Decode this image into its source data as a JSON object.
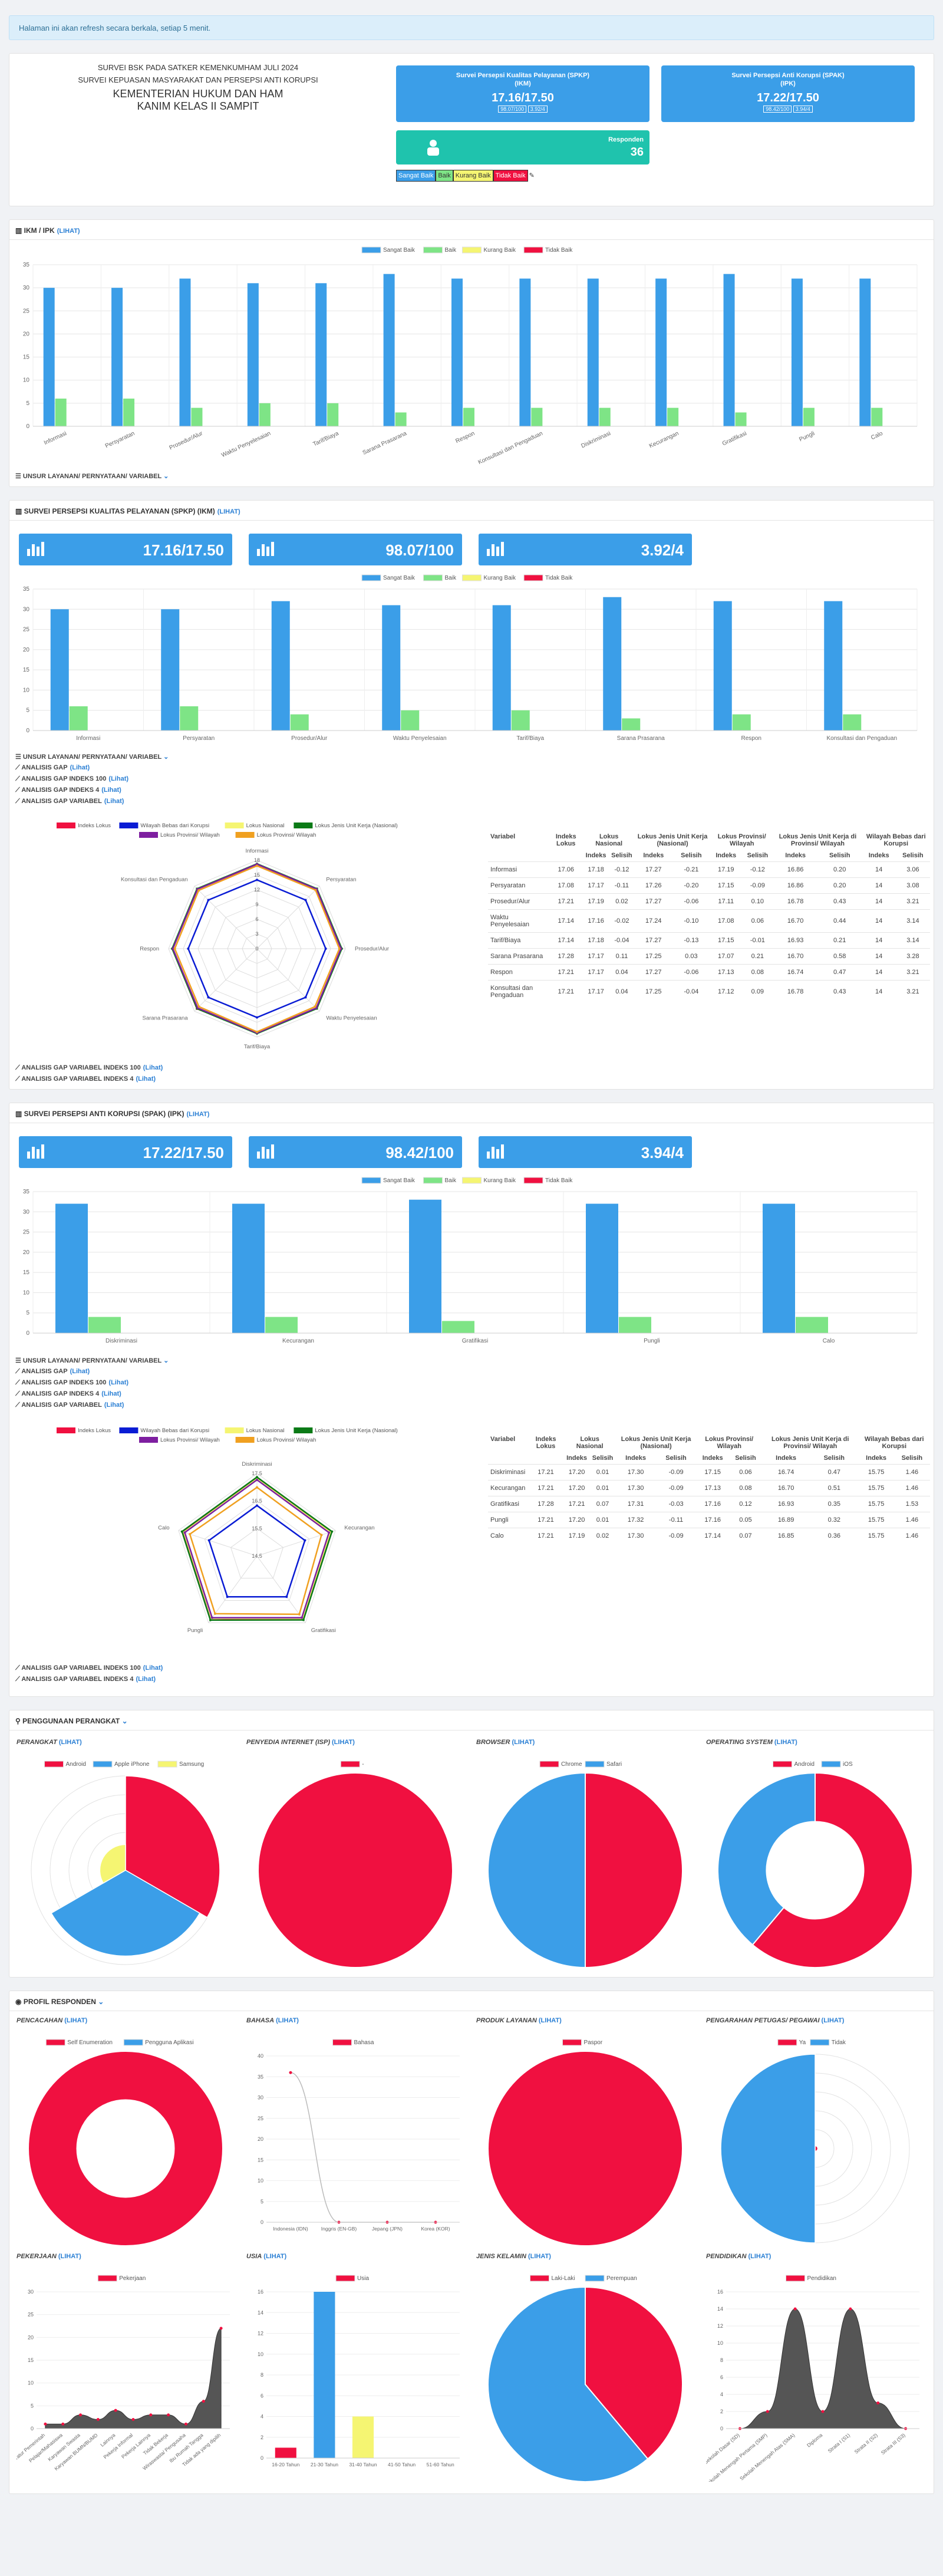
{
  "notice": "Halaman ini akan refresh secara berkala, setiap 5 menit.",
  "header": {
    "line1": "SURVEI BSK PADA SATKER KEMENKUMHAM JULI 2024",
    "line2": "SURVEI KEPUASAN MASYARAKAT DAN PERSEPSI ANTI KORUPSI",
    "line3": "KEMENTERIAN HUKUM DAN HAM",
    "line4": "KANIM KELAS II SAMPIT"
  },
  "spkp": {
    "title1": "Survei Persepsi Kualitas Pelayanan (SPKP)",
    "title2": "(IKM)",
    "value": "17.16/17.50",
    "sub1": "98.07/100",
    "sub2": "3.92/4"
  },
  "spak": {
    "title1": "Survei Persepsi Anti Korupsi (SPAK)",
    "title2": "(IPK)",
    "value": "17.22/17.50",
    "sub1": "98.42/100",
    "sub2": "3.94/4"
  },
  "responden": {
    "label": "Responden",
    "value": "36"
  },
  "legend_predikat": [
    "Sangat Baik",
    "Baik",
    "Kurang Baik",
    "Tidak Baik"
  ],
  "colors": {
    "blue": "#3b9ee8",
    "green": "#7ee486",
    "yellow": "#f5f572",
    "red": "#f01040",
    "teal": "#1fc3ad",
    "navy": "#0a1cd4",
    "darkgreen": "#0b7a16",
    "purple": "#7e1fa0",
    "orange": "#f0a020",
    "grey": "#555555"
  },
  "ikm_ipk": {
    "title": "IKM / IPK",
    "link": "(Lihat)",
    "unsur": "UNSUR LAYANAN/ PERNYATAAN/ VARIABEL"
  },
  "spkp_section": {
    "title": "SURVEI PERSEPSI KUALITAS PELAYANAN (SPKP) (IKM)",
    "link": "(Lihat)",
    "score1": "17.16/17.50",
    "score2": "98.07/100",
    "score3": "3.92/4",
    "links": [
      "UNSUR LAYANAN/ PERNYATAAN/ VARIABEL",
      "ANALISIS GAP",
      "ANALISIS GAP INDEKS 100",
      "ANALISIS GAP INDEKS 4",
      "ANALISIS GAP VARIABEL"
    ],
    "bottom_links": [
      "ANALISIS GAP VARIABEL INDEKS 100",
      "ANALISIS GAP VARIABEL INDEKS 4"
    ]
  },
  "spak_section": {
    "title": "SURVEI PERSEPSI ANTI KORUPSI (SPAK) (IPK)",
    "link": "(Lihat)",
    "score1": "17.22/17.50",
    "score2": "98.42/100",
    "score3": "3.94/4",
    "links": [
      "UNSUR LAYANAN/ PERNYATAAN/ VARIABEL",
      "ANALISIS GAP",
      "ANALISIS GAP INDEKS 100",
      "ANALISIS GAP INDEKS 4",
      "ANALISIS GAP VARIABEL"
    ],
    "bottom_links": [
      "ANALISIS GAP VARIABEL INDEKS 100",
      "ANALISIS GAP VARIABEL INDEKS 4"
    ]
  },
  "radar_legend": [
    "Indeks Lokus",
    "Wilayah Bebas dari Korupsi",
    "Lokus Nasional",
    "Lokus Jenis Unit Kerja (Nasional)",
    "Lokus Provinsi/ Wilayah",
    "Lokus Provinsi/ Wilayah"
  ],
  "gap_headers": {
    "variabel": "Variabel",
    "indeks_lokus": "Indeks Lokus",
    "nasional": "Lokus Nasional",
    "jenis_unit": "Lokus Jenis Unit Kerja (Nasional)",
    "provinsi": "Lokus Provinsi/ Wilayah",
    "jenis_prov": "Lokus Jenis Unit Kerja di Provinsi/ Wilayah",
    "wbk": "Wilayah Bebas dari Korupsi",
    "indeks": "Indeks",
    "selisih": "Selisih"
  },
  "gap_spkp": [
    [
      "Informasi",
      "17.06",
      "17.18",
      "-0.12",
      "17.27",
      "-0.21",
      "17.19",
      "-0.12",
      "16.86",
      "0.20",
      "14",
      "3.06"
    ],
    [
      "Persyaratan",
      "17.08",
      "17.17",
      "-0.11",
      "17.26",
      "-0.20",
      "17.15",
      "-0.09",
      "16.86",
      "0.20",
      "14",
      "3.08"
    ],
    [
      "Prosedur/Alur",
      "17.21",
      "17.19",
      "0.02",
      "17.27",
      "-0.06",
      "17.11",
      "0.10",
      "16.78",
      "0.43",
      "14",
      "3.21"
    ],
    [
      "Waktu Penyelesaian",
      "17.14",
      "17.16",
      "-0.02",
      "17.24",
      "-0.10",
      "17.08",
      "0.06",
      "16.70",
      "0.44",
      "14",
      "3.14"
    ],
    [
      "Tarif/Biaya",
      "17.14",
      "17.18",
      "-0.04",
      "17.27",
      "-0.13",
      "17.15",
      "-0.01",
      "16.93",
      "0.21",
      "14",
      "3.14"
    ],
    [
      "Sarana Prasarana",
      "17.28",
      "17.17",
      "0.11",
      "17.25",
      "0.03",
      "17.07",
      "0.21",
      "16.70",
      "0.58",
      "14",
      "3.28"
    ],
    [
      "Respon",
      "17.21",
      "17.17",
      "0.04",
      "17.27",
      "-0.06",
      "17.13",
      "0.08",
      "16.74",
      "0.47",
      "14",
      "3.21"
    ],
    [
      "Konsultasi dan Pengaduan",
      "17.21",
      "17.17",
      "0.04",
      "17.25",
      "-0.04",
      "17.12",
      "0.09",
      "16.78",
      "0.43",
      "14",
      "3.21"
    ]
  ],
  "gap_spak": [
    [
      "Diskriminasi",
      "17.21",
      "17.20",
      "0.01",
      "17.30",
      "-0.09",
      "17.15",
      "0.06",
      "16.74",
      "0.47",
      "15.75",
      "1.46"
    ],
    [
      "Kecurangan",
      "17.21",
      "17.20",
      "0.01",
      "17.30",
      "-0.09",
      "17.13",
      "0.08",
      "16.70",
      "0.51",
      "15.75",
      "1.46"
    ],
    [
      "Gratifikasi",
      "17.28",
      "17.21",
      "0.07",
      "17.31",
      "-0.03",
      "17.16",
      "0.12",
      "16.93",
      "0.35",
      "15.75",
      "1.53"
    ],
    [
      "Pungli",
      "17.21",
      "17.20",
      "0.01",
      "17.32",
      "-0.11",
      "17.16",
      "0.05",
      "16.89",
      "0.32",
      "15.75",
      "1.46"
    ],
    [
      "Calo",
      "17.21",
      "17.19",
      "0.02",
      "17.30",
      "-0.09",
      "17.14",
      "0.07",
      "16.85",
      "0.36",
      "15.75",
      "1.46"
    ]
  ],
  "perangkat_section": {
    "title": "PENGGUNAAN PERANGKAT",
    "link": "(Lihat)"
  },
  "profil_section": {
    "title": "PROFIL RESPONDEN",
    "link": "(Lihat)"
  },
  "sub_links": "(Lihat)",
  "chart_data": [
    {
      "id": "ikm_ipk",
      "type": "bar",
      "categories": [
        "Informasi",
        "Persyaratan",
        "Prosedur/Alur",
        "Waktu Penyelesaian",
        "Tarif/Biaya",
        "Sarana Prasarana",
        "Respon",
        "Konsultasi dan Pengaduan",
        "Diskriminasi",
        "Kecurangan",
        "Gratifikasi",
        "Pungli",
        "Calo"
      ],
      "series": [
        {
          "name": "Sangat Baik",
          "values": [
            30,
            30,
            32,
            31,
            31,
            33,
            32,
            32,
            32,
            32,
            33,
            32,
            32
          ]
        },
        {
          "name": "Baik",
          "values": [
            6,
            6,
            4,
            5,
            5,
            3,
            4,
            4,
            4,
            4,
            3,
            4,
            4
          ]
        },
        {
          "name": "Kurang Baik",
          "values": [
            0,
            0,
            0,
            0,
            0,
            0,
            0,
            0,
            0,
            0,
            0,
            0,
            0
          ]
        },
        {
          "name": "Tidak Baik",
          "values": [
            0,
            0,
            0,
            0,
            0,
            0,
            0,
            0,
            0,
            0,
            0,
            0,
            0
          ]
        }
      ],
      "ylim": [
        0,
        35
      ],
      "yticks": [
        0,
        5,
        10,
        15,
        20,
        25,
        30,
        35
      ]
    },
    {
      "id": "spkp_bar",
      "type": "bar",
      "categories": [
        "Informasi",
        "Persyaratan",
        "Prosedur/Alur",
        "Waktu Penyelesaian",
        "Tarif/Biaya",
        "Sarana Prasarana",
        "Respon",
        "Konsultasi dan Pengaduan"
      ],
      "series": [
        {
          "name": "Sangat Baik",
          "values": [
            30,
            30,
            32,
            31,
            31,
            33,
            32,
            32
          ]
        },
        {
          "name": "Baik",
          "values": [
            6,
            6,
            4,
            5,
            5,
            3,
            4,
            4
          ]
        },
        {
          "name": "Kurang Baik",
          "values": [
            0,
            0,
            0,
            0,
            0,
            0,
            0,
            0
          ]
        },
        {
          "name": "Tidak Baik",
          "values": [
            0,
            0,
            0,
            0,
            0,
            0,
            0,
            0
          ]
        }
      ],
      "ylim": [
        0,
        35
      ],
      "yticks": [
        0,
        5,
        10,
        15,
        20,
        25,
        30,
        35
      ]
    },
    {
      "id": "spak_bar",
      "type": "bar",
      "categories": [
        "Diskriminasi",
        "Kecurangan",
        "Gratifikasi",
        "Pungli",
        "Calo"
      ],
      "series": [
        {
          "name": "Sangat Baik",
          "values": [
            32,
            32,
            33,
            32,
            32
          ]
        },
        {
          "name": "Baik",
          "values": [
            4,
            4,
            3,
            4,
            4
          ]
        },
        {
          "name": "Kurang Baik",
          "values": [
            0,
            0,
            0,
            0,
            0
          ]
        },
        {
          "name": "Tidak Baik",
          "values": [
            0,
            0,
            0,
            0,
            0
          ]
        }
      ],
      "ylim": [
        0,
        35
      ],
      "yticks": [
        0,
        5,
        10,
        15,
        20,
        25,
        30,
        35
      ]
    },
    {
      "id": "spkp_radar",
      "type": "radar",
      "categories": [
        "Informasi",
        "Persyaratan",
        "Prosedur/Alur",
        "Waktu Penyelesaian",
        "Tarif/Biaya",
        "Sarana Prasarana",
        "Respon",
        "Konsultasi dan Pengaduan"
      ],
      "rlim": [
        0,
        18
      ],
      "ticks": [
        "18",
        "15",
        "12",
        "9",
        "6",
        "3",
        "0"
      ],
      "series": [
        {
          "name": "Indeks Lokus",
          "values": [
            17.06,
            17.08,
            17.21,
            17.14,
            17.14,
            17.28,
            17.21,
            17.21
          ]
        },
        {
          "name": "Wilayah Bebas dari Korupsi",
          "values": [
            14,
            14,
            14,
            14,
            14,
            14,
            14,
            14
          ]
        },
        {
          "name": "Lokus Nasional",
          "values": [
            17.18,
            17.17,
            17.19,
            17.16,
            17.18,
            17.17,
            17.17,
            17.17
          ]
        },
        {
          "name": "Lokus Jenis Unit Kerja (Nasional)",
          "values": [
            17.27,
            17.26,
            17.27,
            17.24,
            17.27,
            17.25,
            17.27,
            17.25
          ]
        },
        {
          "name": "Lokus Provinsi/ Wilayah",
          "values": [
            17.19,
            17.15,
            17.11,
            17.08,
            17.15,
            17.07,
            17.13,
            17.12
          ]
        },
        {
          "name": "Lokus Provinsi/ Wilayah",
          "values": [
            16.86,
            16.86,
            16.78,
            16.7,
            16.93,
            16.7,
            16.74,
            16.78
          ]
        }
      ]
    },
    {
      "id": "spak_radar",
      "type": "radar",
      "categories": [
        "Diskriminasi",
        "Kecurangan",
        "Gratifikasi",
        "Pungli",
        "Calo"
      ],
      "rlim": [
        13,
        17.5
      ],
      "ticks": [
        "17.5",
        "16.5",
        "15.5",
        "14.5"
      ],
      "series": [
        {
          "name": "Indeks Lokus",
          "values": [
            17.21,
            17.21,
            17.28,
            17.21,
            17.21
          ]
        },
        {
          "name": "Wilayah Bebas dari Korupsi",
          "values": [
            15.75,
            15.75,
            15.75,
            15.75,
            15.75
          ]
        },
        {
          "name": "Lokus Nasional",
          "values": [
            17.2,
            17.2,
            17.21,
            17.2,
            17.19
          ]
        },
        {
          "name": "Lokus Jenis Unit Kerja (Nasional)",
          "values": [
            17.3,
            17.3,
            17.31,
            17.32,
            17.3
          ]
        },
        {
          "name": "Lokus Provinsi/ Wilayah",
          "values": [
            17.15,
            17.13,
            17.16,
            17.16,
            17.14
          ]
        },
        {
          "name": "Lokus Provinsi/ Wilayah",
          "values": [
            16.74,
            16.7,
            16.93,
            16.89,
            16.85
          ]
        }
      ]
    },
    {
      "id": "perangkat",
      "title": "PERANGKAT",
      "type": "polarArea",
      "labels": [
        "Android",
        "Apple iPhone",
        "Samsung"
      ],
      "values": [
        22,
        20,
        6
      ]
    },
    {
      "id": "isp",
      "title": "PENYEDIA INTERNET (ISP)",
      "type": "pie",
      "labels": [
        "-"
      ],
      "values": [
        36
      ]
    },
    {
      "id": "browser",
      "title": "BROWSER",
      "type": "pie",
      "labels": [
        "Chrome",
        "Safari"
      ],
      "values": [
        18,
        18
      ]
    },
    {
      "id": "os",
      "title": "OPERATING SYSTEM",
      "type": "doughnut",
      "labels": [
        "Android",
        "iOS"
      ],
      "values": [
        22,
        14
      ]
    },
    {
      "id": "pencacahan",
      "title": "PENCACAHAN",
      "type": "doughnut",
      "labels": [
        "Self Enumeration",
        "Pengguna Aplikasi"
      ],
      "values": [
        36,
        0
      ]
    },
    {
      "id": "bahasa",
      "title": "BAHASA",
      "type": "line",
      "labels": [
        "Indonesia (IDN)",
        "Inggris (EN-GB)",
        "Jepang (JPN)",
        "Korea (KOR)"
      ],
      "series": [
        {
          "name": "Bahasa",
          "values": [
            36,
            0,
            0,
            0
          ]
        }
      ],
      "ylim": [
        0,
        40
      ],
      "yticks": [
        0,
        5,
        10,
        15,
        20,
        25,
        30,
        35,
        40
      ]
    },
    {
      "id": "produk",
      "title": "PRODUK LAYANAN",
      "type": "pie",
      "labels": [
        "Paspor"
      ],
      "values": [
        36
      ]
    },
    {
      "id": "pengarahan",
      "title": "PENGARAHAN PETUGAS/ PEGAWAI",
      "type": "polarArea",
      "labels": [
        "Ya",
        "Tidak"
      ],
      "values": [
        1,
        35
      ]
    },
    {
      "id": "pekerjaan",
      "title": "PEKERJAAN",
      "type": "area",
      "labels": [
        "Aparatur Pemerintah",
        "Pelajar/Mahasiswa",
        "Karyawan Swasta",
        "Karyawan BUMN/BUMD",
        "Lainnya",
        "Pekerja Informal",
        "Pekerja Lainnya",
        "Tidak Bekerja",
        "Wiraswasta/ Pengusaha",
        "Ibu Rumah Tangga",
        "Tidak ada yang dipilih"
      ],
      "series": [
        {
          "name": "Pekerjaan",
          "values": [
            1,
            1,
            3,
            2,
            4,
            2,
            3,
            3,
            1,
            6,
            22
          ]
        }
      ],
      "ylim": [
        0,
        30
      ],
      "yticks": [
        0,
        5,
        10,
        15,
        20,
        25,
        30
      ]
    },
    {
      "id": "usia",
      "title": "USIA",
      "type": "bar",
      "labels": [
        "16-20 Tahun",
        "21-30 Tahun",
        "31-40 Tahun",
        "41-50 Tahun",
        "51-60 Tahun"
      ],
      "series": [
        {
          "name": "Usia",
          "values": [
            1,
            16,
            4,
            0,
            0
          ]
        }
      ],
      "ylim": [
        0,
        16
      ],
      "yticks": [
        0,
        2,
        4,
        6,
        8,
        10,
        12,
        14,
        16
      ]
    },
    {
      "id": "jenis_kelamin",
      "title": "JENIS KELAMIN",
      "type": "pie",
      "labels": [
        "Laki-Laki",
        "Perempuan"
      ],
      "values": [
        14,
        22
      ]
    },
    {
      "id": "pendidikan",
      "title": "PENDIDIKAN",
      "type": "area",
      "labels": [
        "Sekolah Dasar (SD)",
        "Sekolah Menengah Pertama (SMP)",
        "Sekolah Menengah Atas (SMA)",
        "Diploma",
        "Strata I (S1)",
        "Strata II (S2)",
        "Strata III (S3)"
      ],
      "series": [
        {
          "name": "Pendidikan",
          "values": [
            0,
            2,
            14,
            2,
            14,
            3,
            0
          ]
        }
      ],
      "ylim": [
        0,
        16
      ],
      "yticks": [
        0,
        2,
        4,
        6,
        8,
        10,
        12,
        14,
        16
      ]
    }
  ]
}
